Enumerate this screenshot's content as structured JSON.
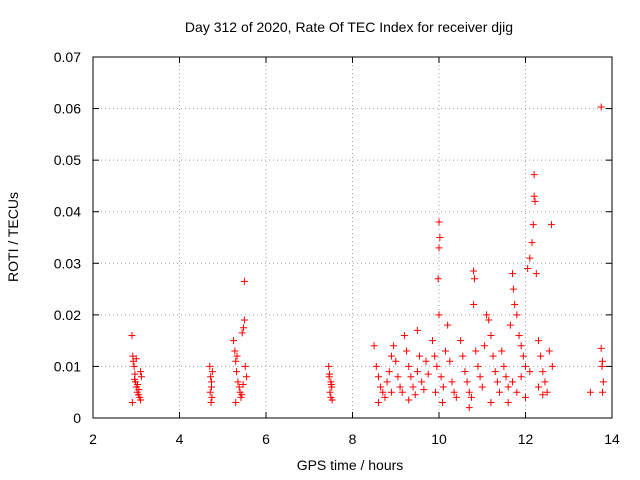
{
  "chart_data": {
    "type": "scatter",
    "title": "Day 312 of 2020, Rate Of TEC Index for receiver djig",
    "xlabel": "GPS time / hours",
    "ylabel": "ROTI / TECUs",
    "xlim": [
      2,
      14
    ],
    "ylim": [
      0,
      0.07
    ],
    "x_ticks": [
      2,
      4,
      6,
      8,
      10,
      12,
      14
    ],
    "x_tick_labels": [
      "2",
      "4",
      "6",
      "8",
      "10",
      "12",
      "14"
    ],
    "y_ticks": [
      0,
      0.01,
      0.02,
      0.03,
      0.04,
      0.05,
      0.06,
      0.07
    ],
    "y_tick_labels": [
      "0",
      "0.01",
      "0.02",
      "0.03",
      "0.04",
      "0.05",
      "0.06",
      "0.07"
    ],
    "grid": true,
    "marker": "plus",
    "color": "#ff0000",
    "series": [
      {
        "name": "ROTI",
        "points": [
          [
            2.9,
            0.016
          ],
          [
            2.92,
            0.012
          ],
          [
            2.95,
            0.01
          ],
          [
            2.97,
            0.0085
          ],
          [
            2.98,
            0.007
          ],
          [
            3.0,
            0.006
          ],
          [
            3.02,
            0.005
          ],
          [
            3.05,
            0.0045
          ],
          [
            3.08,
            0.004
          ],
          [
            3.1,
            0.0035
          ],
          [
            2.93,
            0.011
          ],
          [
            2.96,
            0.0075
          ],
          [
            3.03,
            0.0065
          ],
          [
            3.06,
            0.0055
          ],
          [
            3.1,
            0.009
          ],
          [
            3.12,
            0.008
          ],
          [
            2.91,
            0.003
          ],
          [
            3.0,
            0.0115
          ],
          [
            4.7,
            0.01
          ],
          [
            4.72,
            0.008
          ],
          [
            4.74,
            0.006
          ],
          [
            4.75,
            0.004
          ],
          [
            4.73,
            0.003
          ],
          [
            4.76,
            0.009
          ],
          [
            4.71,
            0.005
          ],
          [
            4.74,
            0.007
          ],
          [
            5.25,
            0.015
          ],
          [
            5.28,
            0.013
          ],
          [
            5.3,
            0.011
          ],
          [
            5.32,
            0.009
          ],
          [
            5.35,
            0.007
          ],
          [
            5.38,
            0.006
          ],
          [
            5.4,
            0.005
          ],
          [
            5.42,
            0.004
          ],
          [
            5.45,
            0.0165
          ],
          [
            5.48,
            0.0175
          ],
          [
            5.5,
            0.019
          ],
          [
            5.52,
            0.01
          ],
          [
            5.55,
            0.008
          ],
          [
            5.5,
            0.0265
          ],
          [
            5.33,
            0.012
          ],
          [
            5.44,
            0.0045
          ],
          [
            5.3,
            0.003
          ],
          [
            5.47,
            0.0065
          ],
          [
            7.45,
            0.01
          ],
          [
            7.47,
            0.0085
          ],
          [
            7.5,
            0.007
          ],
          [
            7.52,
            0.006
          ],
          [
            7.48,
            0.005
          ],
          [
            7.5,
            0.004
          ],
          [
            7.53,
            0.0035
          ],
          [
            7.46,
            0.008
          ],
          [
            7.51,
            0.0065
          ],
          [
            8.5,
            0.014
          ],
          [
            8.55,
            0.01
          ],
          [
            8.6,
            0.008
          ],
          [
            8.65,
            0.006
          ],
          [
            8.7,
            0.005
          ],
          [
            8.75,
            0.004
          ],
          [
            8.8,
            0.007
          ],
          [
            8.85,
            0.009
          ],
          [
            8.9,
            0.012
          ],
          [
            8.95,
            0.014
          ],
          [
            9.0,
            0.011
          ],
          [
            9.05,
            0.008
          ],
          [
            9.1,
            0.006
          ],
          [
            9.15,
            0.005
          ],
          [
            9.2,
            0.016
          ],
          [
            9.25,
            0.013
          ],
          [
            9.3,
            0.01
          ],
          [
            9.35,
            0.008
          ],
          [
            9.4,
            0.006
          ],
          [
            9.45,
            0.0045
          ],
          [
            9.5,
            0.009
          ],
          [
            9.55,
            0.012
          ],
          [
            9.6,
            0.007
          ],
          [
            9.65,
            0.0055
          ],
          [
            9.7,
            0.011
          ],
          [
            9.75,
            0.0085
          ],
          [
            9.5,
            0.017
          ],
          [
            8.6,
            0.003
          ],
          [
            9.3,
            0.0035
          ],
          [
            8.9,
            0.005
          ],
          [
            9.85,
            0.015
          ],
          [
            9.9,
            0.012
          ],
          [
            9.95,
            0.01
          ],
          [
            9.98,
            0.027
          ],
          [
            10.0,
            0.033
          ],
          [
            10.0,
            0.038
          ],
          [
            10.02,
            0.035
          ],
          [
            10.0,
            0.02
          ],
          [
            10.05,
            0.008
          ],
          [
            10.1,
            0.006
          ],
          [
            10.15,
            0.013
          ],
          [
            10.2,
            0.018
          ],
          [
            10.25,
            0.011
          ],
          [
            10.3,
            0.007
          ],
          [
            10.35,
            0.005
          ],
          [
            10.4,
            0.004
          ],
          [
            9.92,
            0.005
          ],
          [
            10.08,
            0.003
          ],
          [
            10.5,
            0.015
          ],
          [
            10.55,
            0.012
          ],
          [
            10.6,
            0.009
          ],
          [
            10.65,
            0.007
          ],
          [
            10.7,
            0.005
          ],
          [
            10.75,
            0.004
          ],
          [
            10.8,
            0.0285
          ],
          [
            10.82,
            0.027
          ],
          [
            10.8,
            0.022
          ],
          [
            10.85,
            0.013
          ],
          [
            10.9,
            0.01
          ],
          [
            10.95,
            0.008
          ],
          [
            11.0,
            0.006
          ],
          [
            11.05,
            0.014
          ],
          [
            11.1,
            0.02
          ],
          [
            11.15,
            0.019
          ],
          [
            11.2,
            0.016
          ],
          [
            11.25,
            0.012
          ],
          [
            11.3,
            0.009
          ],
          [
            11.35,
            0.007
          ],
          [
            11.4,
            0.005
          ],
          [
            11.45,
            0.013
          ],
          [
            10.7,
            0.002
          ],
          [
            11.2,
            0.003
          ],
          [
            11.5,
            0.01
          ],
          [
            11.55,
            0.008
          ],
          [
            11.6,
            0.006
          ],
          [
            11.65,
            0.018
          ],
          [
            11.7,
            0.028
          ],
          [
            11.72,
            0.025
          ],
          [
            11.75,
            0.022
          ],
          [
            11.8,
            0.02
          ],
          [
            11.85,
            0.016
          ],
          [
            11.9,
            0.014
          ],
          [
            11.95,
            0.012
          ],
          [
            12.0,
            0.01
          ],
          [
            12.05,
            0.029
          ],
          [
            12.1,
            0.031
          ],
          [
            12.15,
            0.034
          ],
          [
            12.18,
            0.0375
          ],
          [
            12.2,
            0.043
          ],
          [
            12.22,
            0.042
          ],
          [
            12.2,
            0.0472
          ],
          [
            12.25,
            0.028
          ],
          [
            12.3,
            0.015
          ],
          [
            12.35,
            0.012
          ],
          [
            12.4,
            0.009
          ],
          [
            12.45,
            0.007
          ],
          [
            12.5,
            0.005
          ],
          [
            12.55,
            0.013
          ],
          [
            12.6,
            0.0375
          ],
          [
            12.62,
            0.01
          ],
          [
            11.6,
            0.003
          ],
          [
            12.0,
            0.004
          ],
          [
            11.8,
            0.005
          ],
          [
            12.3,
            0.006
          ],
          [
            11.9,
            0.008
          ],
          [
            12.4,
            0.0045
          ],
          [
            11.7,
            0.007
          ],
          [
            12.1,
            0.009
          ],
          [
            13.5,
            0.005
          ],
          [
            13.75,
            0.0135
          ],
          [
            13.78,
            0.011
          ],
          [
            13.8,
            0.007
          ],
          [
            13.78,
            0.005
          ],
          [
            13.77,
            0.01
          ],
          [
            13.75,
            0.0603
          ]
        ]
      }
    ]
  }
}
